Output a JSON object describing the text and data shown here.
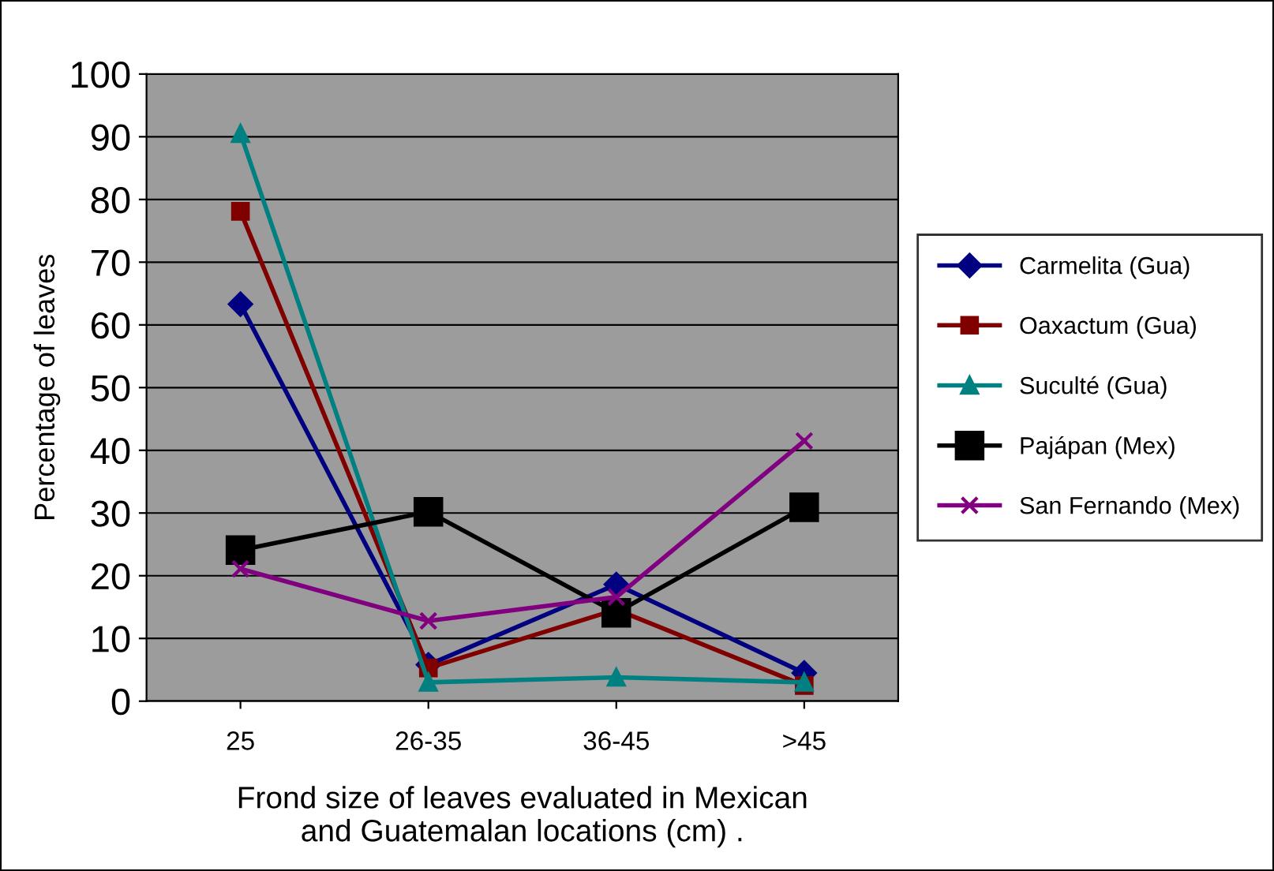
{
  "chart_data": {
    "type": "line",
    "xlabel": "Frond size of leaves evaluated in Mexican\nand Guatemalan locations (cm) .",
    "ylabel": "Percentage of leaves",
    "categories": [
      "25",
      "26-35",
      "36-45",
      ">45"
    ],
    "series": [
      {
        "name": "Carmelita (Gua)",
        "color": "#000080",
        "marker": "diamond",
        "values": [
          63.3,
          5.8,
          18.6,
          4.5
        ]
      },
      {
        "name": "Oaxactum (Gua)",
        "color": "#800000",
        "marker": "square",
        "values": [
          78.1,
          5.3,
          14.6,
          2.5
        ]
      },
      {
        "name": "Suculté (Gua)",
        "color": "#008080",
        "marker": "triangle",
        "values": [
          90.5,
          3,
          3.8,
          3
        ]
      },
      {
        "name": "Pajápan (Mex)",
        "color": "#000000",
        "marker": "square",
        "values": [
          24.1,
          30.2,
          14.1,
          30.9
        ]
      },
      {
        "name": "San Fernando (Mex)",
        "color": "#800080",
        "marker": "cross",
        "values": [
          21.1,
          12.8,
          16.6,
          41.5
        ]
      }
    ],
    "ylim": [
      0,
      100
    ],
    "yticks": [
      0,
      10,
      20,
      30,
      40,
      50,
      60,
      70,
      80,
      90,
      100
    ],
    "grid": "y",
    "legend": "right",
    "line_style": "solid"
  }
}
